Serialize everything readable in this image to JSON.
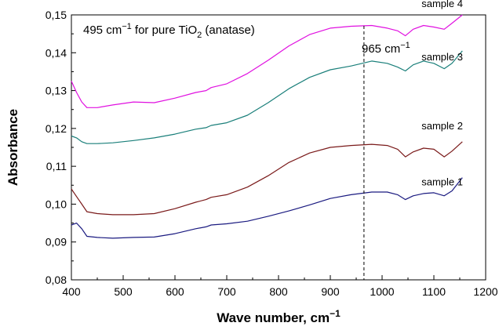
{
  "chart_data": {
    "type": "line",
    "xlabel": "Wave number, cm",
    "xlabel_sup": "−1",
    "ylabel": "Absorbance",
    "xlim": [
      400,
      1200
    ],
    "ylim": [
      0.08,
      0.15
    ],
    "x_ticks": [
      "400",
      "500",
      "600",
      "700",
      "800",
      "900",
      "1000",
      "1100",
      "1200"
    ],
    "y_ticks": [
      "0,08",
      "0,09",
      "0,10",
      "0,11",
      "0,12",
      "0,13",
      "0,14",
      "0,15"
    ],
    "grid": false,
    "annotations": {
      "title_text": {
        "prefix": "495 cm",
        "sup": "−1",
        "mid": " for pure TiO",
        "sub": "2",
        "suffix": " (anatase)"
      },
      "line_text": {
        "text": "965 cm",
        "sup": "−1"
      },
      "vline_x": 965
    },
    "x": [
      400,
      410,
      420,
      430,
      450,
      480,
      520,
      560,
      600,
      640,
      660,
      670,
      700,
      740,
      780,
      820,
      860,
      900,
      940,
      980,
      1010,
      1030,
      1045,
      1060,
      1080,
      1100,
      1120,
      1135,
      1155
    ],
    "series": [
      {
        "name": "sample 1",
        "color": "#1a1a80",
        "values": [
          0.0945,
          0.095,
          0.0935,
          0.0915,
          0.0912,
          0.091,
          0.0912,
          0.0913,
          0.0922,
          0.0935,
          0.094,
          0.0945,
          0.0948,
          0.0955,
          0.0968,
          0.0982,
          0.0998,
          0.1015,
          0.1025,
          0.1032,
          0.1032,
          0.1025,
          0.1012,
          0.1022,
          0.1028,
          0.103,
          0.1022,
          0.1035,
          0.107
        ]
      },
      {
        "name": "sample 2",
        "color": "#7a1a1a",
        "values": [
          0.104,
          0.102,
          0.1,
          0.098,
          0.0975,
          0.0972,
          0.0972,
          0.0975,
          0.0988,
          0.1005,
          0.1012,
          0.1018,
          0.1025,
          0.1045,
          0.1075,
          0.111,
          0.1135,
          0.115,
          0.1155,
          0.1158,
          0.1155,
          0.1145,
          0.1125,
          0.1138,
          0.1148,
          0.1145,
          0.1125,
          0.114,
          0.1165
        ]
      },
      {
        "name": "sample 3",
        "color": "#1a7f7a",
        "values": [
          0.118,
          0.1175,
          0.1165,
          0.116,
          0.116,
          0.1162,
          0.1168,
          0.1175,
          0.1185,
          0.1198,
          0.1202,
          0.1208,
          0.1215,
          0.1235,
          0.1268,
          0.1305,
          0.1335,
          0.1355,
          0.1365,
          0.1378,
          0.1372,
          0.1362,
          0.1352,
          0.1368,
          0.1378,
          0.1372,
          0.1358,
          0.1372,
          0.1405
        ]
      },
      {
        "name": "sample 4",
        "color": "#e010e0",
        "values": [
          0.1325,
          0.1295,
          0.127,
          0.1255,
          0.1255,
          0.1262,
          0.127,
          0.1268,
          0.128,
          0.1295,
          0.13,
          0.1308,
          0.1318,
          0.1345,
          0.138,
          0.1418,
          0.1448,
          0.1465,
          0.147,
          0.1472,
          0.1465,
          0.1458,
          0.1445,
          0.1462,
          0.1472,
          0.1468,
          0.1462,
          0.1478,
          0.15
        ]
      }
    ]
  }
}
